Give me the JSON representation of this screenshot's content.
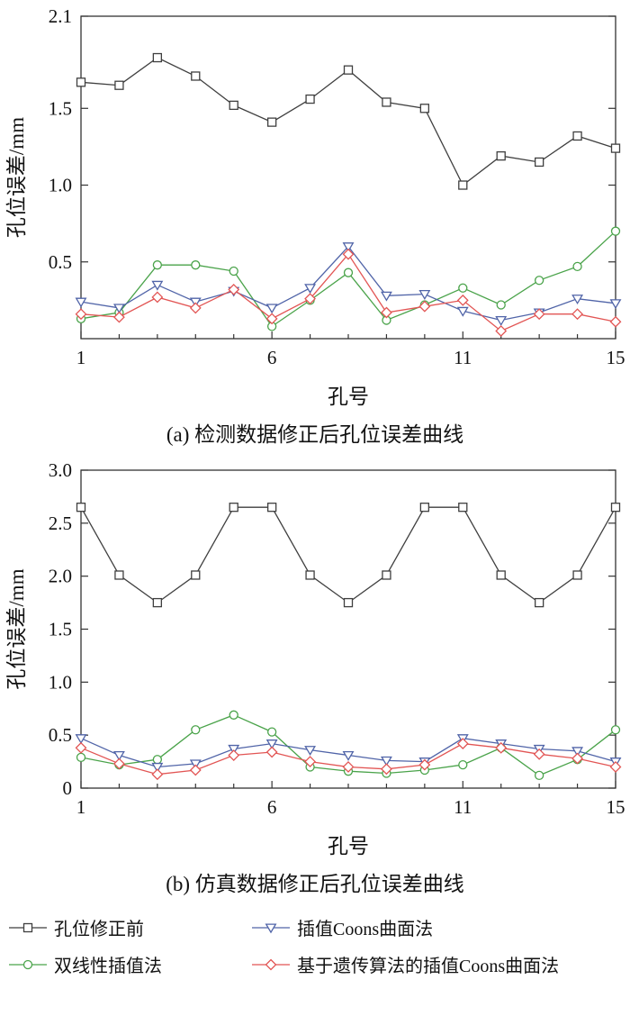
{
  "figure": {
    "background": "#ffffff"
  },
  "legend": {
    "position": "bottom",
    "items": [
      {
        "label": "孔位修正前",
        "color": "#3f3f3f",
        "marker": "square"
      },
      {
        "label": "插值Coons曲面法",
        "color": "#5064a8",
        "marker": "triangle-down"
      },
      {
        "label": "双线性插值法",
        "color": "#4aa34a",
        "marker": "circle"
      },
      {
        "label": "基于遗传算法的插值Coons曲面法",
        "color": "#e25554",
        "marker": "diamond"
      }
    ]
  },
  "chart_data": [
    {
      "type": "line",
      "caption": "(a) 检测数据修正后孔位误差曲线",
      "xlabel": "孔号",
      "ylabel": "孔位误差/mm",
      "xlim": [
        1,
        15
      ],
      "ylim": [
        0,
        2.1
      ],
      "x_ticks": [
        1,
        6,
        11,
        15
      ],
      "y_ticks": [
        0.5,
        1.0,
        1.5,
        2.1
      ],
      "y_tick_labels": [
        "0.5",
        "1.0",
        "1.5",
        "2.1"
      ],
      "grid": false,
      "x": [
        1,
        2,
        3,
        4,
        5,
        6,
        7,
        8,
        9,
        10,
        11,
        12,
        13,
        14,
        15
      ],
      "series": [
        {
          "name": "孔位修正前",
          "color": "#3f3f3f",
          "marker": "square",
          "values": [
            1.67,
            1.65,
            1.83,
            1.71,
            1.52,
            1.41,
            1.56,
            1.75,
            1.54,
            1.5,
            1.0,
            1.19,
            1.15,
            1.32,
            1.24
          ]
        },
        {
          "name": "双线性插值法",
          "color": "#4aa34a",
          "marker": "circle",
          "values": [
            0.13,
            0.17,
            0.48,
            0.48,
            0.44,
            0.08,
            0.25,
            0.43,
            0.12,
            0.22,
            0.33,
            0.22,
            0.38,
            0.47,
            0.7
          ]
        },
        {
          "name": "插值Coons曲面法",
          "color": "#5064a8",
          "marker": "triangle-down",
          "values": [
            0.24,
            0.2,
            0.35,
            0.24,
            0.31,
            0.2,
            0.33,
            0.6,
            0.28,
            0.29,
            0.18,
            0.12,
            0.17,
            0.26,
            0.23
          ]
        },
        {
          "name": "基于遗传算法的插值Coons曲面法",
          "color": "#e25554",
          "marker": "diamond",
          "values": [
            0.16,
            0.14,
            0.27,
            0.2,
            0.32,
            0.13,
            0.26,
            0.55,
            0.17,
            0.21,
            0.25,
            0.05,
            0.16,
            0.16,
            0.11
          ]
        }
      ]
    },
    {
      "type": "line",
      "caption": "(b) 仿真数据修正后孔位误差曲线",
      "xlabel": "孔号",
      "ylabel": "孔位误差/mm",
      "xlim": [
        1,
        15
      ],
      "ylim": [
        0,
        3.0
      ],
      "x_ticks": [
        1,
        6,
        11,
        15
      ],
      "y_ticks": [
        0,
        0.5,
        1.0,
        1.5,
        2.0,
        2.5,
        3.0
      ],
      "y_tick_labels": [
        "0",
        "0.5",
        "1.0",
        "1.5",
        "2.0",
        "2.5",
        "3.0"
      ],
      "grid": false,
      "x": [
        1,
        2,
        3,
        4,
        5,
        6,
        7,
        8,
        9,
        10,
        11,
        12,
        13,
        14,
        15
      ],
      "series": [
        {
          "name": "孔位修正前",
          "color": "#3f3f3f",
          "marker": "square",
          "values": [
            2.65,
            2.01,
            1.75,
            2.01,
            2.65,
            2.65,
            2.01,
            1.75,
            2.01,
            2.65,
            2.65,
            2.01,
            1.75,
            2.01,
            2.65
          ]
        },
        {
          "name": "双线性插值法",
          "color": "#4aa34a",
          "marker": "circle",
          "values": [
            0.29,
            0.22,
            0.27,
            0.55,
            0.69,
            0.53,
            0.2,
            0.16,
            0.14,
            0.17,
            0.22,
            0.38,
            0.12,
            0.27,
            0.55
          ]
        },
        {
          "name": "插值Coons曲面法",
          "color": "#5064a8",
          "marker": "triangle-down",
          "values": [
            0.47,
            0.31,
            0.2,
            0.23,
            0.37,
            0.42,
            0.36,
            0.31,
            0.26,
            0.25,
            0.47,
            0.42,
            0.37,
            0.35,
            0.25
          ]
        },
        {
          "name": "基于遗传算法的插值Coons曲面法",
          "color": "#e25554",
          "marker": "diamond",
          "values": [
            0.38,
            0.23,
            0.13,
            0.17,
            0.31,
            0.34,
            0.25,
            0.2,
            0.18,
            0.22,
            0.42,
            0.38,
            0.32,
            0.28,
            0.2
          ]
        }
      ]
    }
  ]
}
